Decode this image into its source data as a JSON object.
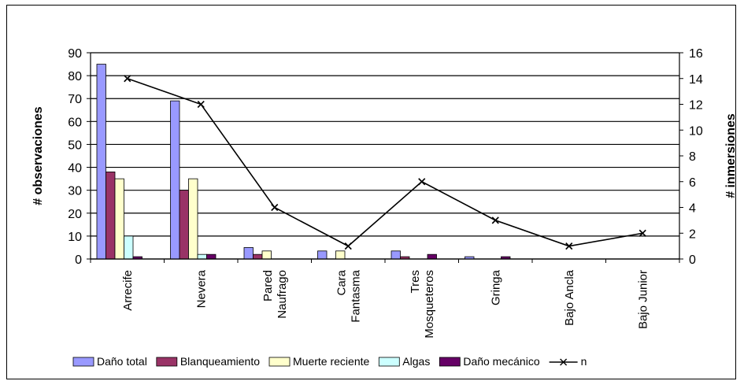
{
  "chart_data": {
    "type": "bar",
    "categories": [
      [
        "Arrecife"
      ],
      [
        "Nevera"
      ],
      [
        "Pared",
        "Naufrago"
      ],
      [
        "Cara",
        "Fantasma"
      ],
      [
        "Tres",
        "Mosqueteros"
      ],
      [
        "Gringa"
      ],
      [
        "Bajo Ancla"
      ],
      [
        "Bajo Junior"
      ]
    ],
    "series": [
      {
        "name": "Daño total",
        "color": "#9999ff",
        "values": [
          85,
          69,
          5,
          3.5,
          3.5,
          1,
          0,
          0
        ]
      },
      {
        "name": "Blanqueamiento",
        "color": "#993366",
        "values": [
          38,
          30,
          2,
          0,
          1,
          0,
          0,
          0
        ]
      },
      {
        "name": "Muerte reciente",
        "color": "#ffffcc",
        "values": [
          35,
          35,
          3.5,
          3.5,
          0,
          0,
          0,
          0
        ]
      },
      {
        "name": "Algas",
        "color": "#ccffff",
        "values": [
          10,
          2,
          0,
          0,
          0,
          0,
          0,
          0
        ]
      },
      {
        "name": "Daño mecánico",
        "color": "#660066",
        "values": [
          1,
          2,
          0,
          0,
          2,
          1,
          0,
          0
        ]
      }
    ],
    "line_series": {
      "name": "n",
      "axis": "right",
      "values": [
        14,
        12,
        4,
        1,
        6,
        3,
        1,
        2
      ]
    },
    "ylabel": "# observaciones",
    "y2label": "# inmersiones",
    "ylim": [
      0,
      90
    ],
    "y2lim": [
      0,
      16
    ],
    "yticks": [
      0,
      10,
      20,
      30,
      40,
      50,
      60,
      70,
      80,
      90
    ],
    "y2ticks": [
      0,
      2,
      4,
      6,
      8,
      10,
      12,
      14,
      16
    ],
    "grid": true,
    "legend_position": "bottom"
  }
}
